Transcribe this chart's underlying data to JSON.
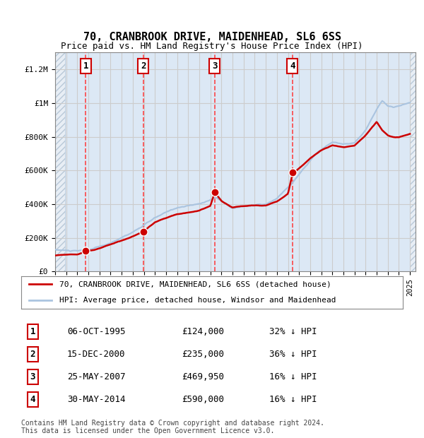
{
  "title": "70, CRANBROOK DRIVE, MAIDENHEAD, SL6 6SS",
  "subtitle": "Price paid vs. HM Land Registry's House Price Index (HPI)",
  "ylabel_ticks": [
    "£0",
    "£200K",
    "£400K",
    "£600K",
    "£800K",
    "£1M",
    "£1.2M"
  ],
  "ytick_vals": [
    0,
    200000,
    400000,
    600000,
    800000,
    1000000,
    1200000
  ],
  "ylim": [
    0,
    1300000
  ],
  "xlim_start": 1993.0,
  "xlim_end": 2025.5,
  "transactions": [
    {
      "year": 1995.75,
      "price": 124000,
      "label": "1"
    },
    {
      "year": 2000.95,
      "price": 235000,
      "label": "2"
    },
    {
      "year": 2007.39,
      "price": 469950,
      "label": "3"
    },
    {
      "year": 2014.41,
      "price": 590000,
      "label": "4"
    }
  ],
  "legend_line1": "70, CRANBROOK DRIVE, MAIDENHEAD, SL6 6SS (detached house)",
  "legend_line2": "HPI: Average price, detached house, Windsor and Maidenhead",
  "table_rows": [
    [
      "1",
      "06-OCT-1995",
      "£124,000",
      "32% ↓ HPI"
    ],
    [
      "2",
      "15-DEC-2000",
      "£235,000",
      "36% ↓ HPI"
    ],
    [
      "3",
      "25-MAY-2007",
      "£469,950",
      "16% ↓ HPI"
    ],
    [
      "4",
      "30-MAY-2014",
      "£590,000",
      "16% ↓ HPI"
    ]
  ],
  "footnote": "Contains HM Land Registry data © Crown copyright and database right 2024.\nThis data is licensed under the Open Government Licence v3.0.",
  "hpi_color": "#aac4e0",
  "price_color": "#cc0000",
  "hatch_color": "#d0d8e8",
  "background_hatch": "#e8eef5",
  "grid_color": "#cccccc",
  "dashed_line_color": "#ff4444"
}
